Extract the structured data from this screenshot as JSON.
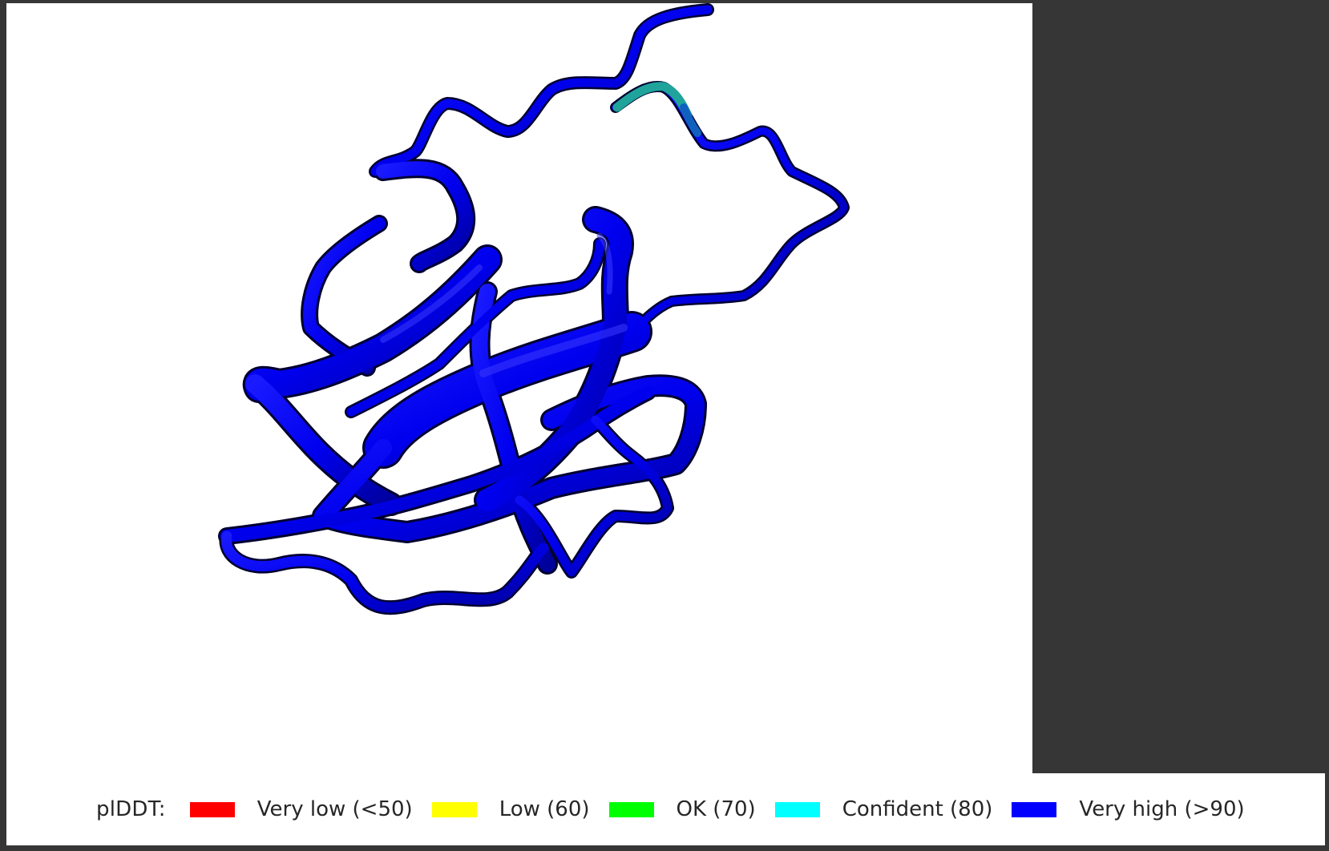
{
  "legend": {
    "title": "plDDT:",
    "items": [
      {
        "label": "Very low (<50)",
        "color": "#ff0000"
      },
      {
        "label": "Low (60)",
        "color": "#ffff00"
      },
      {
        "label": "OK (70)",
        "color": "#00ff00"
      },
      {
        "label": "Confident (80)",
        "color": "#00ffff"
      },
      {
        "label": "Very high (>90)",
        "color": "#0000ff"
      }
    ]
  },
  "structure": {
    "dominant_color": "#0000ff",
    "accent_color": "#1fa39a",
    "shadow_color": "#000033"
  }
}
